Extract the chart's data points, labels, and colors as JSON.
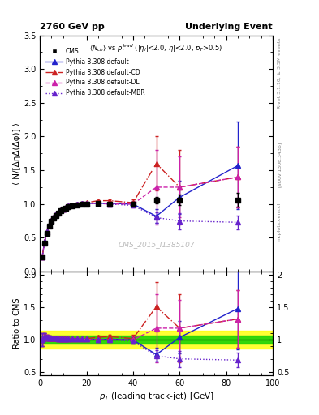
{
  "title_left": "2760 GeV pp",
  "title_right": "Underlying Event",
  "ylabel_main": "⟨ N/[ΔηΔ(Δφ)] ⟩",
  "ylabel_ratio": "Ratio to CMS",
  "xlabel": "p_{T} (leading track-jet) [GeV]",
  "subtitle": "<N_{ch}> vs p_{T}^{lead} (|η_{l}|<2.0, η|<2.0, p_{T}>0.5)",
  "watermark": "CMS_2015_I1385107",
  "right_label1": "Rivet 3.1.10, ≥ 3.5M events",
  "right_label2": "[arXiv:1306.3436]",
  "right_label3": "mcplots.cern.ch",
  "cms_x": [
    1,
    2,
    3,
    4,
    5,
    6,
    7,
    8,
    9,
    10,
    11,
    12,
    14,
    16,
    18,
    20,
    25,
    30,
    40,
    50,
    60,
    85
  ],
  "cms_y": [
    0.22,
    0.42,
    0.57,
    0.67,
    0.74,
    0.79,
    0.83,
    0.87,
    0.9,
    0.92,
    0.94,
    0.96,
    0.97,
    0.99,
    1.0,
    1.0,
    1.01,
    1.0,
    1.0,
    1.06,
    1.06,
    1.06
  ],
  "cms_yerr": [
    0.02,
    0.02,
    0.02,
    0.02,
    0.02,
    0.02,
    0.02,
    0.02,
    0.02,
    0.02,
    0.02,
    0.02,
    0.02,
    0.02,
    0.02,
    0.02,
    0.02,
    0.02,
    0.03,
    0.05,
    0.08,
    0.1
  ],
  "py_default_x": [
    1,
    2,
    3,
    4,
    5,
    6,
    7,
    8,
    9,
    10,
    11,
    12,
    14,
    16,
    18,
    20,
    25,
    30,
    40,
    50,
    60,
    85
  ],
  "py_default_y": [
    0.22,
    0.44,
    0.59,
    0.69,
    0.76,
    0.81,
    0.85,
    0.88,
    0.91,
    0.93,
    0.95,
    0.97,
    0.98,
    1.0,
    1.01,
    1.01,
    1.01,
    1.01,
    1.0,
    0.82,
    1.1,
    1.57
  ],
  "py_default_yerr": [
    0.01,
    0.01,
    0.01,
    0.01,
    0.01,
    0.01,
    0.01,
    0.01,
    0.01,
    0.01,
    0.01,
    0.01,
    0.01,
    0.01,
    0.01,
    0.01,
    0.01,
    0.01,
    0.02,
    0.1,
    0.25,
    0.65
  ],
  "py_cd_x": [
    1,
    2,
    3,
    4,
    5,
    6,
    7,
    8,
    9,
    10,
    11,
    12,
    14,
    16,
    18,
    20,
    25,
    30,
    40,
    50,
    60,
    85
  ],
  "py_cd_y": [
    0.22,
    0.44,
    0.59,
    0.69,
    0.76,
    0.81,
    0.85,
    0.88,
    0.91,
    0.93,
    0.95,
    0.97,
    0.98,
    1.0,
    1.01,
    1.02,
    1.05,
    1.05,
    1.02,
    1.6,
    1.25,
    1.4
  ],
  "py_cd_yerr": [
    0.01,
    0.01,
    0.01,
    0.01,
    0.01,
    0.01,
    0.01,
    0.01,
    0.01,
    0.01,
    0.01,
    0.01,
    0.01,
    0.01,
    0.01,
    0.01,
    0.01,
    0.02,
    0.05,
    0.4,
    0.55,
    0.45
  ],
  "py_dl_x": [
    1,
    2,
    3,
    4,
    5,
    6,
    7,
    8,
    9,
    10,
    11,
    12,
    14,
    16,
    18,
    20,
    25,
    30,
    40,
    50,
    60,
    85
  ],
  "py_dl_y": [
    0.22,
    0.44,
    0.59,
    0.69,
    0.76,
    0.81,
    0.85,
    0.88,
    0.91,
    0.93,
    0.95,
    0.97,
    0.98,
    1.0,
    1.01,
    1.01,
    1.01,
    1.0,
    1.0,
    1.25,
    1.25,
    1.4
  ],
  "py_dl_yerr": [
    0.01,
    0.01,
    0.01,
    0.01,
    0.01,
    0.01,
    0.01,
    0.01,
    0.01,
    0.01,
    0.01,
    0.01,
    0.01,
    0.01,
    0.01,
    0.01,
    0.01,
    0.02,
    0.05,
    0.55,
    0.45,
    0.45
  ],
  "py_mbr_x": [
    1,
    2,
    3,
    4,
    5,
    6,
    7,
    8,
    9,
    10,
    11,
    12,
    14,
    16,
    18,
    20,
    25,
    30,
    40,
    50,
    60,
    85
  ],
  "py_mbr_y": [
    0.22,
    0.44,
    0.59,
    0.69,
    0.76,
    0.81,
    0.85,
    0.88,
    0.91,
    0.93,
    0.95,
    0.97,
    0.98,
    1.0,
    1.01,
    1.01,
    1.01,
    1.0,
    0.98,
    0.8,
    0.75,
    0.73
  ],
  "py_mbr_yerr": [
    0.01,
    0.01,
    0.01,
    0.01,
    0.01,
    0.01,
    0.01,
    0.01,
    0.01,
    0.01,
    0.01,
    0.01,
    0.01,
    0.01,
    0.01,
    0.01,
    0.01,
    0.01,
    0.02,
    0.08,
    0.12,
    0.1
  ],
  "xlim": [
    0,
    100
  ],
  "ylim_main": [
    0,
    3.5
  ],
  "ylim_ratio": [
    0.45,
    2.05
  ],
  "color_cms": "#000000",
  "color_default": "#2222cc",
  "color_cd": "#cc2222",
  "color_dl": "#cc22aa",
  "color_mbr": "#6622cc",
  "green_band_half": 0.06,
  "yellow_band_half": 0.14
}
